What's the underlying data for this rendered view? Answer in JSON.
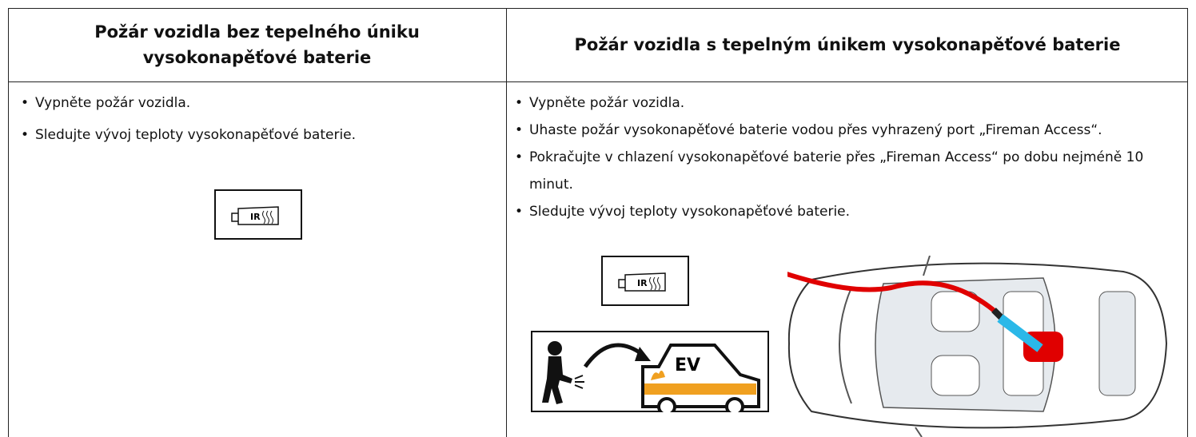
{
  "table": {
    "header": [
      "Požár vozidla bez tepelného úniku vysokonapěťové baterie",
      "Požár vozidla s tepelným únikem vysokonapěťové baterie"
    ],
    "columns": [
      [
        "Vypněte požár vozidla.",
        "Sledujte vývoj teploty vysokonapěťové baterie."
      ],
      [
        "Vypněte požár vozidla.",
        "Uhaste požár vysokonapěťové baterie vodou přes vyhrazený port „Fireman Access“.",
        "Pokračujte v chlazení vysokonapěťové baterie přes „Fireman Access“ po dobu nejméně 10 minut.",
        "Sledujte vývoj teploty vysokonapěťové baterie."
      ]
    ]
  },
  "icons": {
    "ir": "IR",
    "ev": "EV"
  }
}
